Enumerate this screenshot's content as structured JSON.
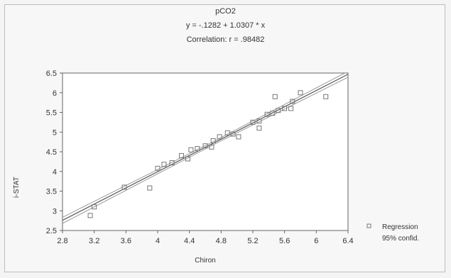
{
  "chart_data": {
    "type": "scatter",
    "title": "pCO2",
    "equation": "y = -.1282 + 1.0307 *    x",
    "correlation": "Correlation: r = .98482",
    "xlabel": "Chiron",
    "ylabel": "i-STAT",
    "xlim": [
      2.8,
      6.4
    ],
    "ylim": [
      2.5,
      6.5
    ],
    "xticks": [
      "2.8",
      "3.2",
      "3.6",
      "4",
      "4.4",
      "4.8",
      "5.2",
      "5.6",
      "6",
      "6.4"
    ],
    "yticks": [
      "2.5",
      "3",
      "3.5",
      "4",
      "4.5",
      "5",
      "5.5",
      "6",
      "6.5"
    ],
    "regression": {
      "intercept": -0.1282,
      "slope": 1.0307
    },
    "legend": [
      "Regression",
      "95% confid."
    ],
    "legend_position": "right",
    "points": [
      {
        "x": 3.15,
        "y": 2.88
      },
      {
        "x": 3.2,
        "y": 3.1
      },
      {
        "x": 3.58,
        "y": 3.6
      },
      {
        "x": 3.9,
        "y": 3.58
      },
      {
        "x": 4.0,
        "y": 4.08
      },
      {
        "x": 4.08,
        "y": 4.18
      },
      {
        "x": 4.18,
        "y": 4.22
      },
      {
        "x": 4.3,
        "y": 4.4
      },
      {
        "x": 4.38,
        "y": 4.32
      },
      {
        "x": 4.42,
        "y": 4.55
      },
      {
        "x": 4.5,
        "y": 4.58
      },
      {
        "x": 4.6,
        "y": 4.65
      },
      {
        "x": 4.68,
        "y": 4.62
      },
      {
        "x": 4.7,
        "y": 4.78
      },
      {
        "x": 4.78,
        "y": 4.88
      },
      {
        "x": 4.88,
        "y": 4.98
      },
      {
        "x": 4.95,
        "y": 4.95
      },
      {
        "x": 5.02,
        "y": 4.88
      },
      {
        "x": 5.2,
        "y": 5.25
      },
      {
        "x": 5.28,
        "y": 5.1
      },
      {
        "x": 5.28,
        "y": 5.28
      },
      {
        "x": 5.38,
        "y": 5.45
      },
      {
        "x": 5.45,
        "y": 5.48
      },
      {
        "x": 5.48,
        "y": 5.9
      },
      {
        "x": 5.52,
        "y": 5.55
      },
      {
        "x": 5.6,
        "y": 5.6
      },
      {
        "x": 5.68,
        "y": 5.6
      },
      {
        "x": 5.7,
        "y": 5.78
      },
      {
        "x": 5.8,
        "y": 6.0
      },
      {
        "x": 6.12,
        "y": 5.9
      }
    ],
    "grid": false
  },
  "colors": {
    "point": "#777777",
    "line": "#555555",
    "band": "#9a9a9a",
    "background": "#f7f7f7"
  }
}
